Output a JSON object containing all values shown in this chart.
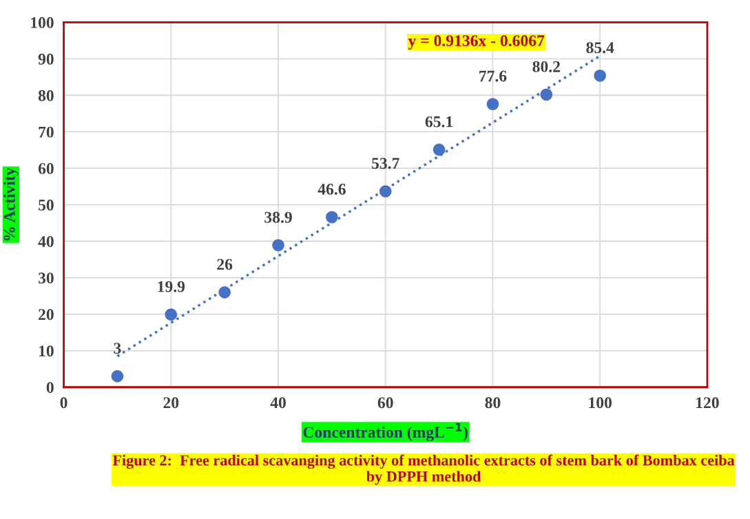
{
  "chart_data": {
    "type": "scatter",
    "title": "Figure 2:  Free radical scavanging activity of methanolic extracts of stem bark of Bombax ceiba by DPPH method",
    "xlabel": "Concentration (mgL$^{−1}$)",
    "ylabel": "% Activity",
    "x": [
      10,
      20,
      30,
      40,
      50,
      60,
      70,
      80,
      90,
      100
    ],
    "series": [
      {
        "color": "#4472c4",
        "marker": "circle",
        "data_labels": true,
        "values": [
          3,
          19.9,
          26,
          38.9,
          46.6,
          53.7,
          65.1,
          77.6,
          80.2,
          85.4
        ]
      },
      {
        "type": "line",
        "color": "#4472c4",
        "line_style": "dotted",
        "x": [
          10,
          100
        ],
        "values": [
          8.5,
          90.8
        ]
      }
    ],
    "annotations": [
      "y = 0.9136x - 0.6067"
    ],
    "xlim": [
      0,
      120
    ],
    "xticks": [
      0,
      20,
      40,
      60,
      80,
      100,
      120
    ],
    "ylim": [
      0,
      100
    ],
    "yticks": [
      0,
      10,
      20,
      30,
      40,
      50,
      60,
      70,
      80,
      90,
      100
    ],
    "grid": true,
    "legend": false
  }
}
